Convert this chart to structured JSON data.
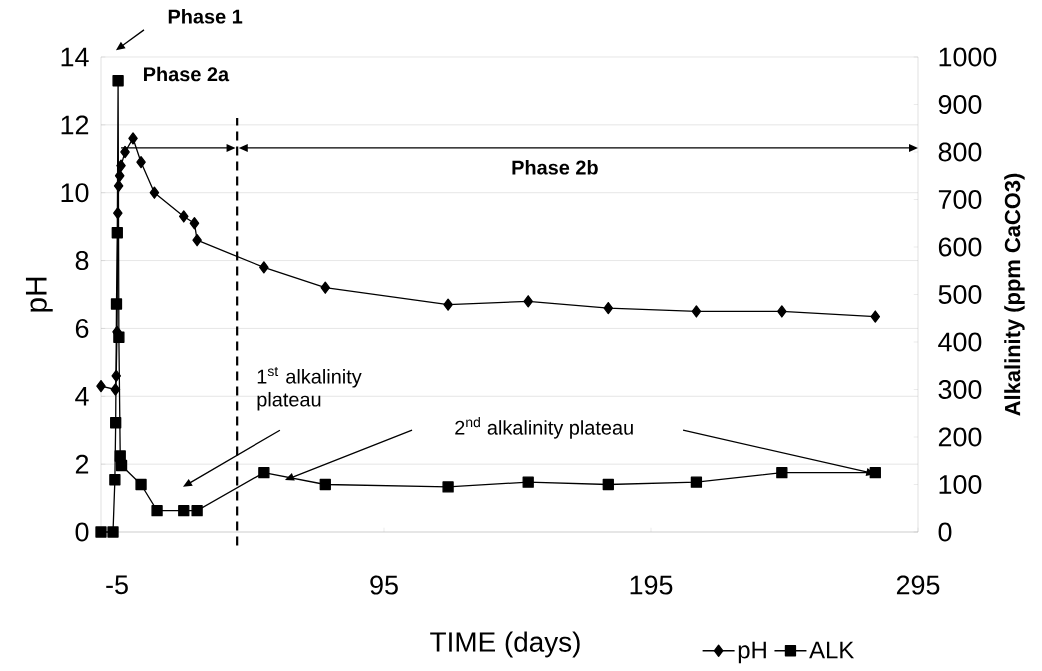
{
  "chart_data": {
    "type": "line",
    "xlabel": "TIME (days)",
    "ylabel": "pH",
    "y2label": "Alkalinity  (ppm CaCO3)",
    "xlim": [
      -11,
      295
    ],
    "xticks": [
      -5,
      95,
      195,
      295
    ],
    "ylim": [
      0,
      14
    ],
    "yticks": [
      0,
      2,
      4,
      6,
      8,
      10,
      12,
      14
    ],
    "y2lim": [
      0,
      1000
    ],
    "y2ticks": [
      0,
      100,
      200,
      300,
      400,
      500,
      600,
      700,
      800,
      900,
      1000
    ],
    "grid": "y",
    "legend": "bottom",
    "series": [
      {
        "name": "pH",
        "color": "#000000",
        "marker": "diamond",
        "x": [
          -11,
          -5.6,
          -5.3,
          -5,
          -4.7,
          -4.4,
          -4,
          -3.5,
          -2,
          1,
          4,
          9,
          20,
          24,
          25,
          50,
          73,
          119,
          149,
          179,
          212,
          244,
          279
        ],
        "values": [
          4.3,
          4.2,
          4.6,
          5.9,
          9.4,
          10.2,
          10.5,
          10.8,
          11.2,
          11.6,
          10.9,
          10.0,
          9.3,
          9.1,
          8.6,
          7.8,
          7.2,
          6.7,
          6.8,
          6.6,
          6.5,
          6.5,
          6.35
        ]
      },
      {
        "name": "ALK",
        "color": "#000000",
        "marker": "square",
        "axis": "y2",
        "x": [
          -11,
          -6.5,
          -5.8,
          -5.5,
          -5.2,
          -4.9,
          -4.6,
          -4.3,
          -3.8,
          -3.3,
          4,
          10,
          20,
          25,
          50,
          73,
          119,
          149,
          179,
          212,
          244,
          279
        ],
        "values": [
          0,
          0,
          110,
          230,
          480,
          630,
          950,
          410,
          160,
          140,
          100,
          45,
          45,
          45,
          125,
          100,
          95,
          105,
          100,
          105,
          125,
          125
        ]
      }
    ],
    "ref_lines": [
      {
        "axis": "x",
        "value": 40,
        "line_style": "dashed",
        "color": "#000000"
      }
    ],
    "annotations": [
      "Phase 1",
      "Phase 2a",
      "Phase 2b",
      "1$^{st}$ alkalinity plateau",
      "2$^{nd}$ alkalinity plateau"
    ]
  }
}
